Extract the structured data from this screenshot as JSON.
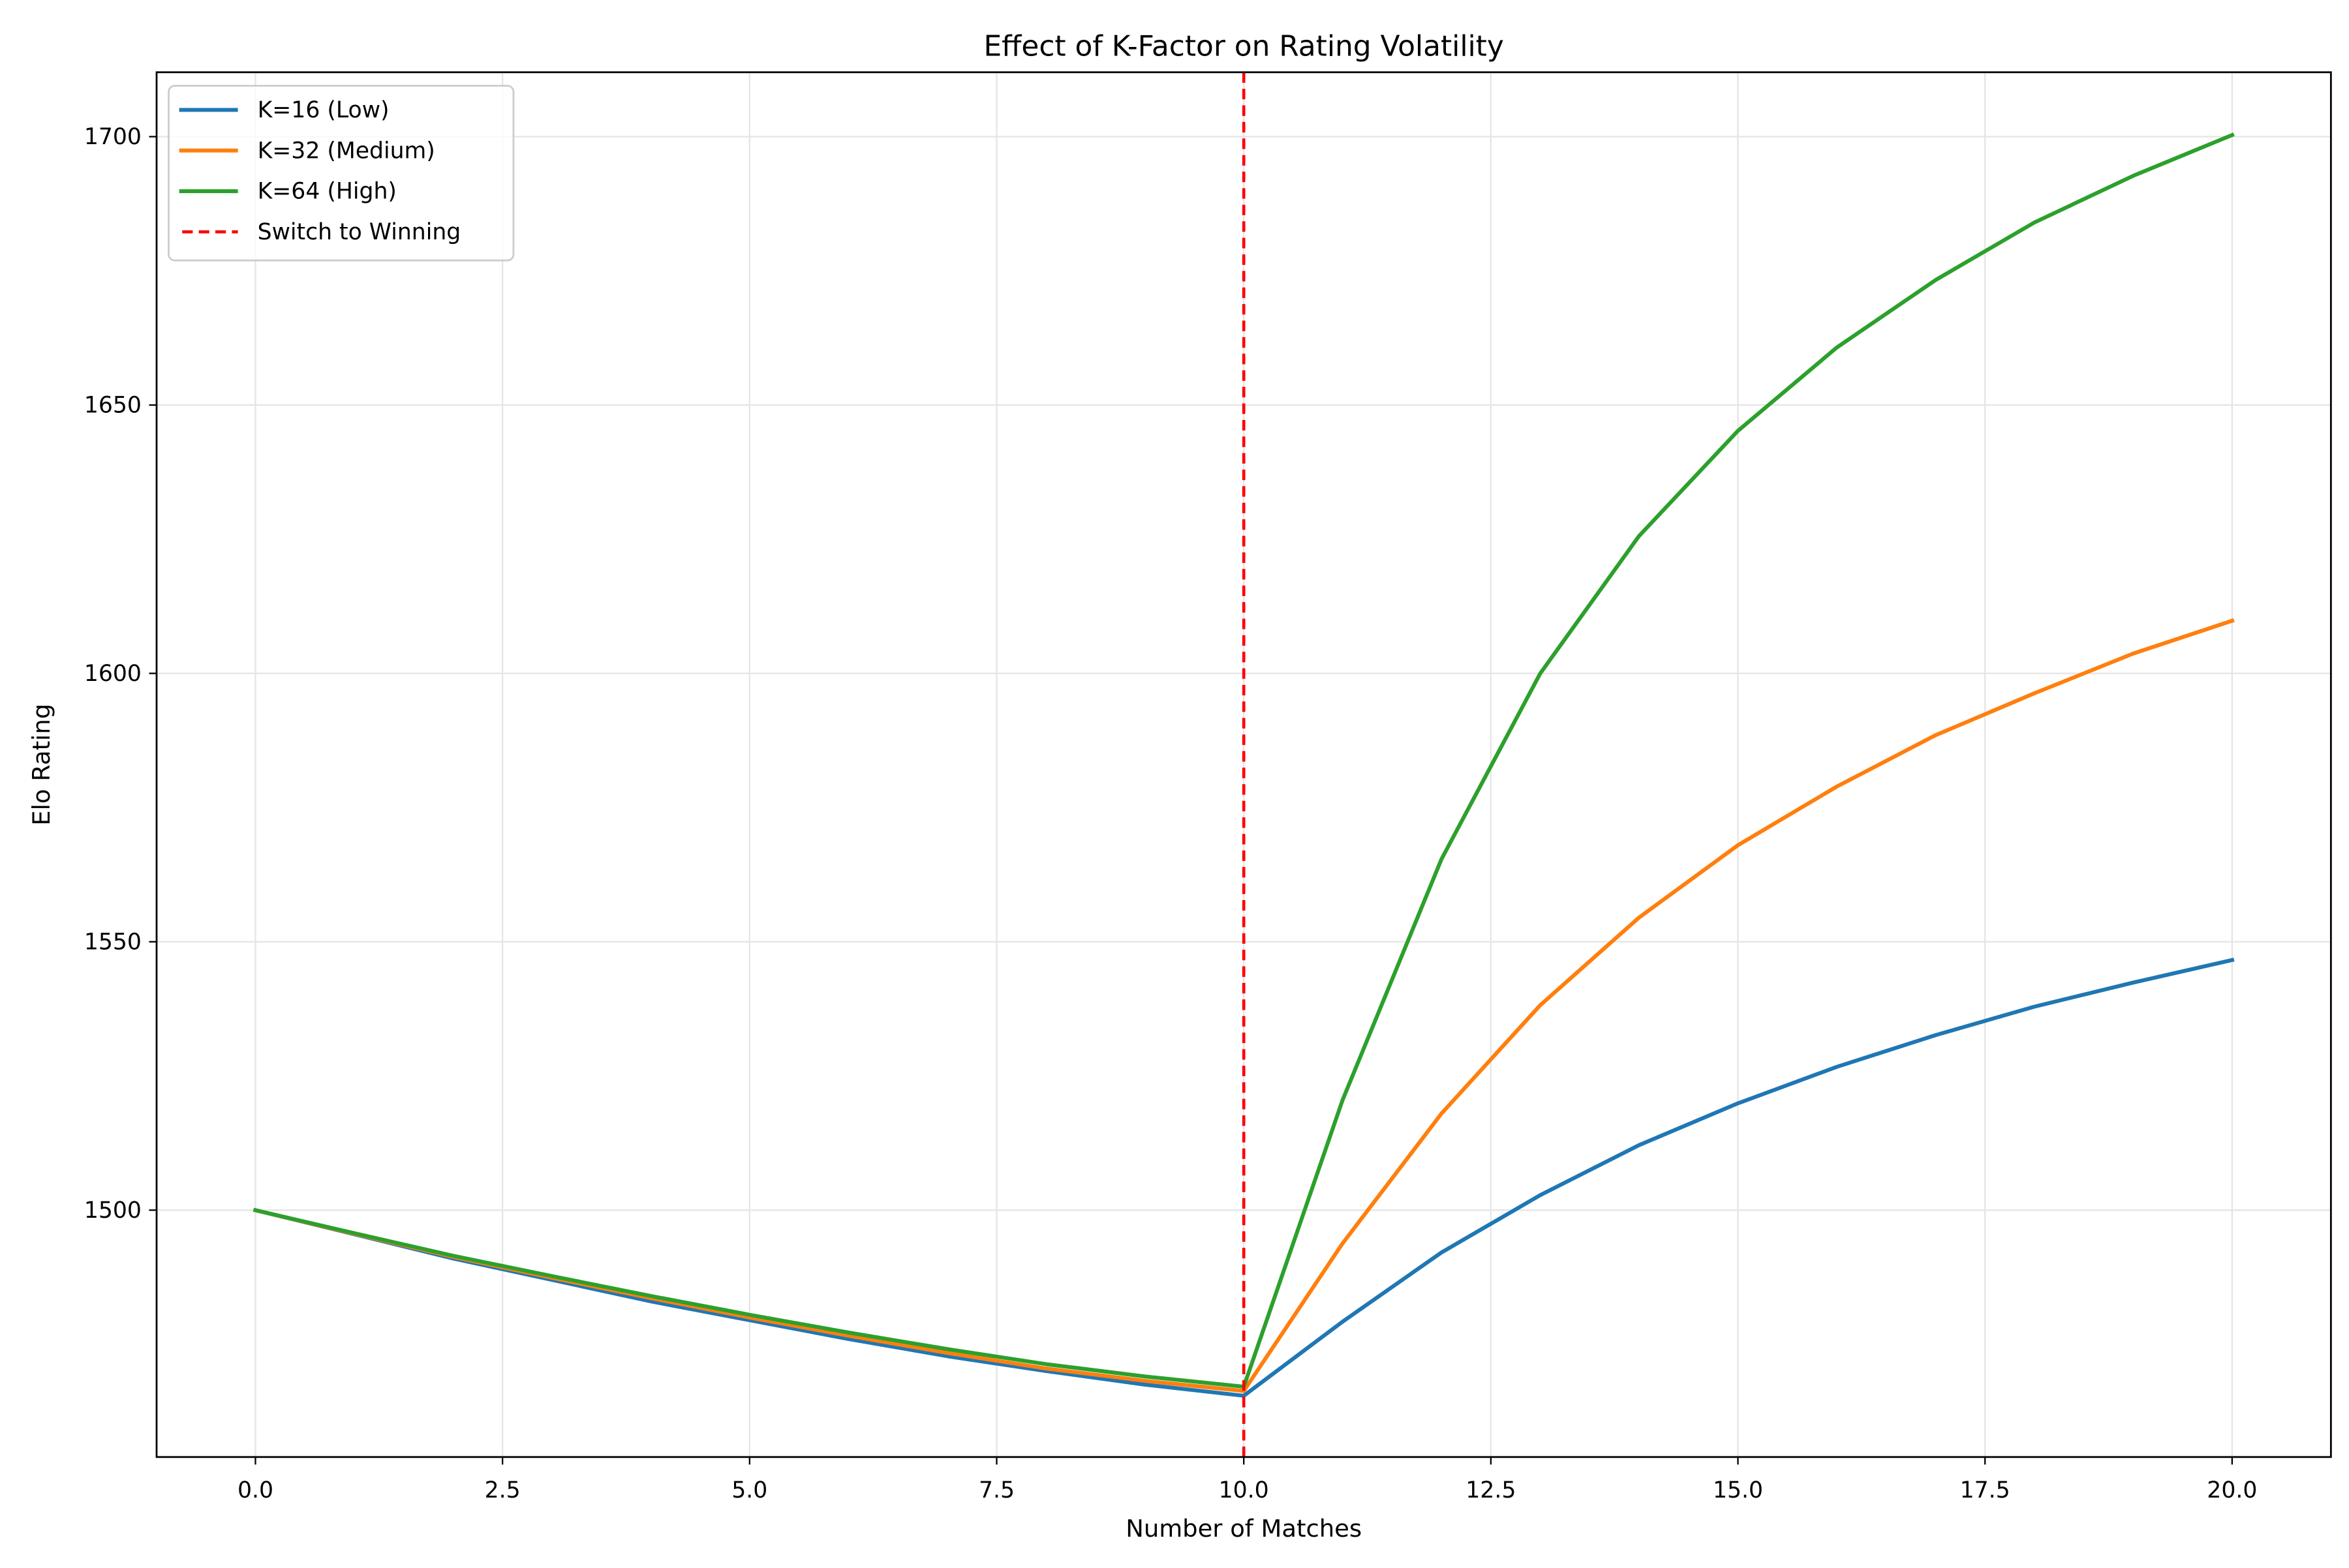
{
  "chart_data": {
    "type": "line",
    "title": "Effect of K-Factor on Rating Volatility",
    "xlabel": "Number of Matches",
    "ylabel": "Elo Rating",
    "xlim": [
      -1.0,
      21.0
    ],
    "ylim": [
      1454,
      1712
    ],
    "xticks": [
      0.0,
      2.5,
      5.0,
      7.5,
      10.0,
      12.5,
      15.0,
      17.5,
      20.0
    ],
    "xtick_labels": [
      "0.0",
      "2.5",
      "5.0",
      "7.5",
      "10.0",
      "12.5",
      "15.0",
      "17.5",
      "20.0"
    ],
    "yticks": [
      1500,
      1550,
      1600,
      1650,
      1700
    ],
    "ytick_labels": [
      "1500",
      "1550",
      "1600",
      "1650",
      "1700"
    ],
    "grid": true,
    "legend_position": "upper left",
    "x": [
      0,
      1,
      2,
      3,
      4,
      5,
      6,
      7,
      8,
      9,
      10,
      11,
      12,
      13,
      14,
      15,
      16,
      17,
      18,
      19,
      20
    ],
    "series": [
      {
        "name": "K=16 (Low)",
        "color": "#1f77b4",
        "values": [
          1500,
          1495.5,
          1491,
          1487,
          1483,
          1479.5,
          1476,
          1472.8,
          1470,
          1467.5,
          1465.4,
          1479.2,
          1492.1,
          1502.8,
          1512.1,
          1519.9,
          1526.7,
          1532.6,
          1537.9,
          1542.4,
          1546.6
        ]
      },
      {
        "name": "K=32 (Medium)",
        "color": "#ff7f0e",
        "values": [
          1500,
          1495.6,
          1491.3,
          1487.4,
          1483.6,
          1480,
          1476.6,
          1473.4,
          1470.5,
          1468.2,
          1466.3,
          1493.8,
          1518.0,
          1538.2,
          1554.5,
          1568.0,
          1578.9,
          1588.5,
          1596.3,
          1603.7,
          1609.8
        ]
      },
      {
        "name": "K=64 (High)",
        "color": "#2ca02c",
        "values": [
          1500,
          1495.7,
          1491.5,
          1487.7,
          1484,
          1480.5,
          1477.2,
          1474.1,
          1471.3,
          1469,
          1467.1,
          1520.5,
          1565.4,
          1600.0,
          1625.6,
          1645.2,
          1660.7,
          1673.3,
          1684.0,
          1692.7,
          1700.3
        ]
      }
    ],
    "annotations": [
      {
        "type": "vline",
        "x": 10,
        "label": "Switch to Winning",
        "color": "#ff0000",
        "style": "dashed"
      }
    ]
  },
  "legend": {
    "items": [
      {
        "label": "K=16 (Low)",
        "color": "#1f77b4",
        "style": "solid"
      },
      {
        "label": "K=32 (Medium)",
        "color": "#ff7f0e",
        "style": "solid"
      },
      {
        "label": "K=64 (High)",
        "color": "#2ca02c",
        "style": "solid"
      },
      {
        "label": "Switch to Winning",
        "color": "#ff0000",
        "style": "dashed"
      }
    ]
  }
}
